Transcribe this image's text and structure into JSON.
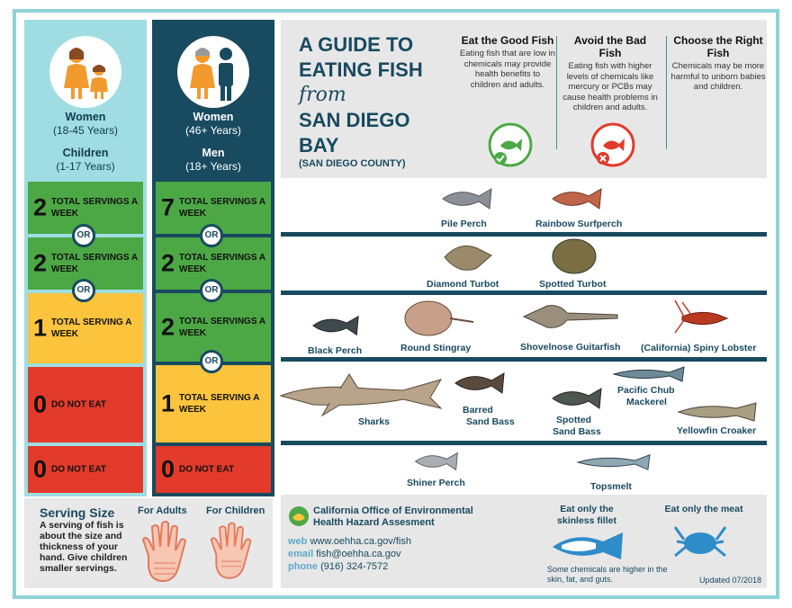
{
  "left_panel": {
    "group1": {
      "title": "Women",
      "age": "(18-45 Years)",
      "title2": "Children",
      "age2": "(1-17 Years)"
    },
    "group2": {
      "title": "Women",
      "age": "(46+ Years)",
      "title2": "Men",
      "age2": "(18+ Years)"
    },
    "or_label": "OR",
    "col1_rows": [
      {
        "num": "2",
        "label": "TOTAL SERVINGS A WEEK",
        "color": "#4ca845"
      },
      {
        "num": "2",
        "label": "TOTAL SERVINGS A WEEK",
        "color": "#4ca845"
      },
      {
        "num": "1",
        "label": "TOTAL SERVING A WEEK",
        "color": "#fcc43c"
      },
      {
        "num": "0",
        "label": "DO NOT EAT",
        "color": "#e23a2b"
      },
      {
        "num": "0",
        "label": "DO NOT EAT",
        "color": "#e23a2b"
      }
    ],
    "col2_rows": [
      {
        "num": "7",
        "label": "TOTAL SERVINGS A WEEK",
        "color": "#4ca845"
      },
      {
        "num": "2",
        "label": "TOTAL SERVINGS A WEEK",
        "color": "#4ca845"
      },
      {
        "num": "2",
        "label": "TOTAL SERVINGS A WEEK",
        "color": "#4ca845"
      },
      {
        "num": "1",
        "label": "TOTAL SERVING A WEEK",
        "color": "#fcc43c"
      },
      {
        "num": "0",
        "label": "DO NOT EAT",
        "color": "#e23a2b"
      }
    ]
  },
  "serving_size": {
    "title": "Serving Size",
    "text": "A serving of fish is about the size and thickness of your hand. Give children smaller servings.",
    "adults": "For Adults",
    "children": "For Children"
  },
  "header": {
    "title_line1": "A GUIDE TO",
    "title_line2": "EATING FISH",
    "title_from": "from",
    "title_line3": "SAN DIEGO",
    "title_line4": "BAY",
    "county": "(SAN DIEGO COUNTY)",
    "col_good": {
      "heading": "Eat the Good Fish",
      "text": "Eating fish that are low in chemicals may provide health benefits to children and adults."
    },
    "col_bad": {
      "heading": "Avoid the Bad Fish",
      "text": "Eating fish with higher levels of chemicals like mercury or PCBs may cause health problems in children and adults."
    },
    "col_right": {
      "heading": "Choose the Right Fish",
      "text": "Chemicals may be more harmful to unborn babies and children."
    }
  },
  "fish": {
    "row1": [
      "Pile Perch",
      "Rainbow Surfperch"
    ],
    "row2": [
      "Diamond Turbot",
      "Spotted Turbot"
    ],
    "row3": [
      "Black Perch",
      "Round Stingray",
      "Shovelnose Guitarfish",
      "(California) Spiny Lobster"
    ],
    "row4": [
      "Sharks",
      "Barred",
      "Sand Bass",
      "Spotted",
      "Sand Bass",
      "Pacific Chub",
      "Mackerel",
      "Yellowfin Croaker"
    ],
    "row5": [
      "Shiner Perch",
      "Topsmelt"
    ]
  },
  "footer": {
    "org": "California Office of Environmental Health Hazard Assesment",
    "web_label": "web",
    "web": "www.oehha.ca.gov/fish",
    "email_label": "email",
    "email": "fish@oehha.ca.gov",
    "phone_label": "phone",
    "phone": "(916) 324-7572",
    "tip1": "Eat only the skinless fillet",
    "tip2": "Eat only the meat",
    "note": "Some chemicals are higher in the skin, fat, and guts.",
    "updated": "Updated 07/2018"
  },
  "colors": {
    "navy": "#184a60",
    "teal": "#9fdde2",
    "green": "#4ca845",
    "yellow": "#fcc43c",
    "red": "#e23a2b"
  }
}
